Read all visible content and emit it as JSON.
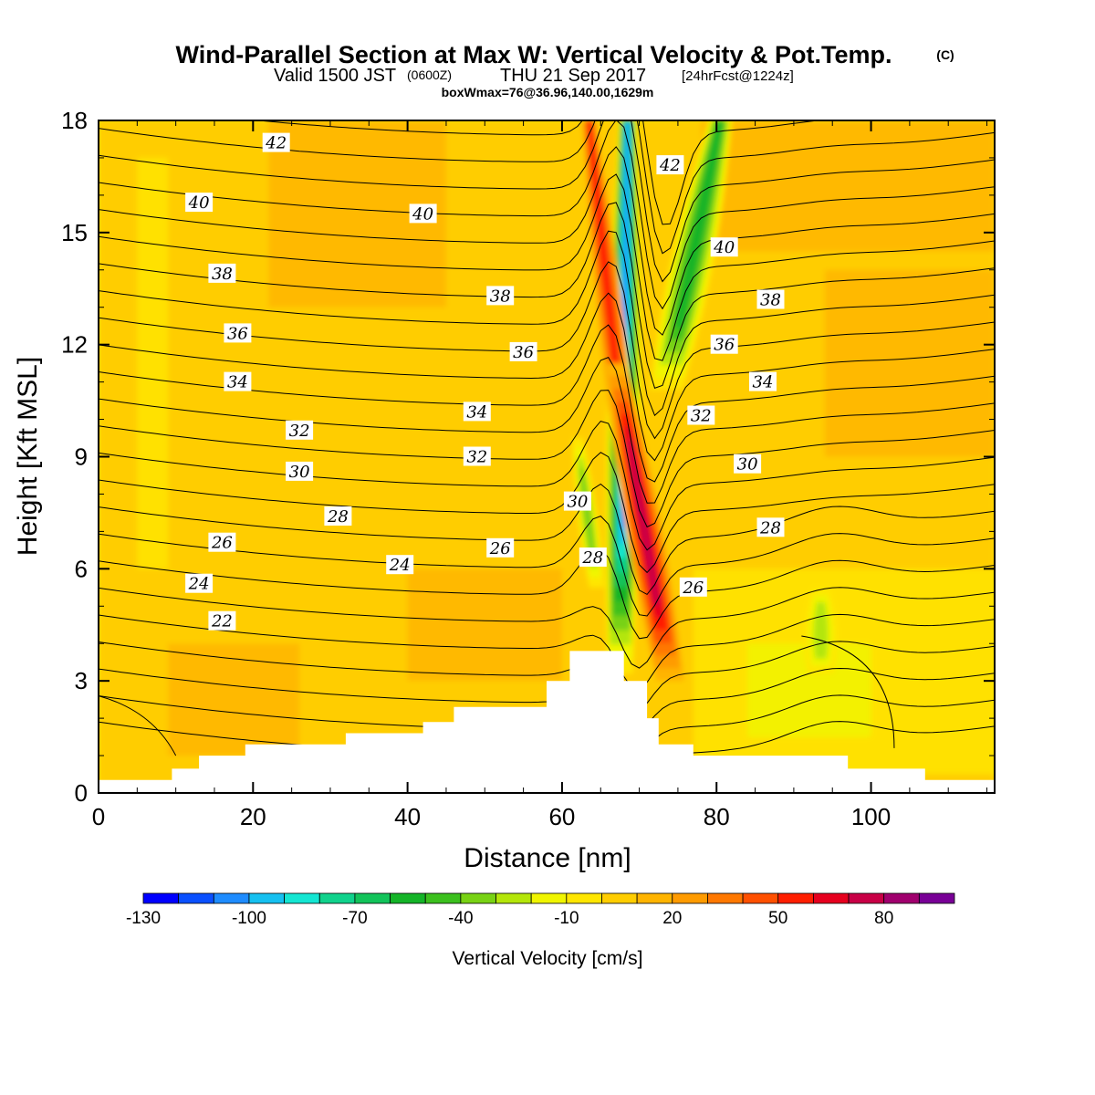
{
  "title": {
    "main": "Wind-Parallel Section at Max W: Vertical Velocity & Pot.Temp.",
    "copyright": "(C)",
    "valid_prefix": "Valid 1500 JST",
    "valid_zulu": "(0600Z)",
    "valid_date": "THU 21 Sep 2017",
    "forecast": "[24hrFcst@1224z]",
    "box_info": "boxWmax=76@36.96,140.00,1629m"
  },
  "colorbar": {
    "label": "Vertical Velocity [cm/s]",
    "tick_labels": [
      "-130",
      "-100",
      "-70",
      "-40",
      "-10",
      "20",
      "50",
      "80"
    ],
    "levels": [
      -130,
      -120,
      -110,
      -100,
      -90,
      -80,
      -70,
      -60,
      -50,
      -40,
      -30,
      -20,
      -10,
      0,
      10,
      20,
      30,
      40,
      50,
      60,
      70,
      80,
      90
    ],
    "colors": [
      "#0000ff",
      "#0a50ff",
      "#1e8cff",
      "#16c0f0",
      "#14e6d2",
      "#10d28c",
      "#12c35a",
      "#14b428",
      "#3cc01e",
      "#78d214",
      "#b4e60a",
      "#f0f500",
      "#ffe600",
      "#ffcd00",
      "#ffb400",
      "#ff9b00",
      "#ff7800",
      "#ff5000",
      "#ff1e00",
      "#e6001e",
      "#c80046",
      "#a0006e",
      "#780096"
    ]
  },
  "chart_data": {
    "type": "heatmap",
    "title": "Wind-Parallel Section at Max W: Vertical Velocity & Pot.Temp.",
    "xlabel": "Distance [nm]",
    "ylabel": "Height [Kft MSL]",
    "xlim": [
      0,
      116
    ],
    "ylim": [
      0,
      18
    ],
    "x_ticks": [
      "0",
      "20",
      "40",
      "60",
      "80",
      "100"
    ],
    "y_ticks": [
      "0",
      "3",
      "6",
      "9",
      "12",
      "15",
      "18"
    ],
    "shaded_field": "Vertical Velocity [cm/s]",
    "contour_field": "Potential temperature",
    "terrain_profile": {
      "x": [
        0,
        9.5,
        9.5,
        13,
        13,
        19,
        19,
        32,
        32,
        42,
        42,
        46,
        46,
        58,
        58,
        61,
        61,
        68,
        68,
        71,
        71,
        72.5,
        72.5,
        77,
        77,
        97,
        97,
        107,
        107,
        116
      ],
      "y": [
        0.35,
        0.35,
        0.65,
        0.65,
        1.0,
        1.0,
        1.3,
        1.3,
        1.6,
        1.6,
        1.9,
        1.9,
        2.3,
        2.3,
        3.0,
        3.0,
        3.8,
        3.8,
        3.0,
        3.0,
        2.0,
        2.0,
        1.3,
        1.3,
        1.0,
        1.0,
        0.65,
        0.65,
        0.35,
        0.35
      ]
    },
    "velocity_features": [
      {
        "x_center_top": 68.5,
        "x_center_bottom": 67.5,
        "y_top": 18,
        "y_bottom": 3.2,
        "tilt_slope": -0.22,
        "half_width": 2.2,
        "peak": -115,
        "description": "downdraft"
      },
      {
        "x_center_top": 80.5,
        "x_center_bottom": 73.5,
        "y_top": 18,
        "y_bottom": 10.8,
        "tilt_slope": -0.6,
        "half_width": 2.8,
        "peak": -60
      },
      {
        "x_center_top": 63.5,
        "x_center_bottom": 68.5,
        "y_top": 18,
        "y_bottom": 8.5,
        "tilt_slope": 0.5,
        "half_width": 1.7,
        "peak": 50
      },
      {
        "x_center_top": 67.0,
        "x_center_bottom": 74.0,
        "y_top": 11.5,
        "y_bottom": 3.0,
        "tilt_slope": 0.8,
        "half_width": 2.4,
        "peak": 76
      },
      {
        "x_center_top": 62.0,
        "x_center_bottom": 64.5,
        "y_top": 9.5,
        "y_bottom": 5.5,
        "tilt_slope": 0.6,
        "half_width": 1.3,
        "peak": -40
      },
      {
        "x_center_top": 93.5,
        "x_center_bottom": 93.5,
        "y_top": 5.5,
        "y_bottom": 3.2,
        "tilt_slope": 0,
        "half_width": 2.2,
        "peak": -30
      }
    ],
    "theta_contour_labels": [
      {
        "value": "22",
        "x": 16,
        "y": 4.6
      },
      {
        "value": "24",
        "x": 13,
        "y": 5.6
      },
      {
        "value": "24",
        "x": 39,
        "y": 6.1
      },
      {
        "value": "26",
        "x": 16,
        "y": 6.7
      },
      {
        "value": "26",
        "x": 52,
        "y": 6.55
      },
      {
        "value": "26",
        "x": 77,
        "y": 5.5
      },
      {
        "value": "28",
        "x": 31,
        "y": 7.4
      },
      {
        "value": "28",
        "x": 64,
        "y": 6.3
      },
      {
        "value": "28",
        "x": 87,
        "y": 7.1
      },
      {
        "value": "30",
        "x": 26,
        "y": 8.6
      },
      {
        "value": "30",
        "x": 62,
        "y": 7.8
      },
      {
        "value": "30",
        "x": 84,
        "y": 8.8
      },
      {
        "value": "32",
        "x": 26,
        "y": 9.7
      },
      {
        "value": "32",
        "x": 49,
        "y": 9.0
      },
      {
        "value": "32",
        "x": 78,
        "y": 10.1
      },
      {
        "value": "34",
        "x": 18,
        "y": 11.0
      },
      {
        "value": "34",
        "x": 49,
        "y": 10.2
      },
      {
        "value": "34",
        "x": 86,
        "y": 11.0
      },
      {
        "value": "36",
        "x": 18,
        "y": 12.3
      },
      {
        "value": "36",
        "x": 55,
        "y": 11.8
      },
      {
        "value": "36",
        "x": 81,
        "y": 12.0
      },
      {
        "value": "38",
        "x": 16,
        "y": 13.9
      },
      {
        "value": "38",
        "x": 52,
        "y": 13.3
      },
      {
        "value": "38",
        "x": 87,
        "y": 13.2
      },
      {
        "value": "40",
        "x": 13,
        "y": 15.8
      },
      {
        "value": "40",
        "x": 42,
        "y": 15.5
      },
      {
        "value": "40",
        "x": 81,
        "y": 14.6
      },
      {
        "value": "42",
        "x": 23,
        "y": 17.4
      },
      {
        "value": "42",
        "x": 74,
        "y": 16.8
      }
    ]
  }
}
